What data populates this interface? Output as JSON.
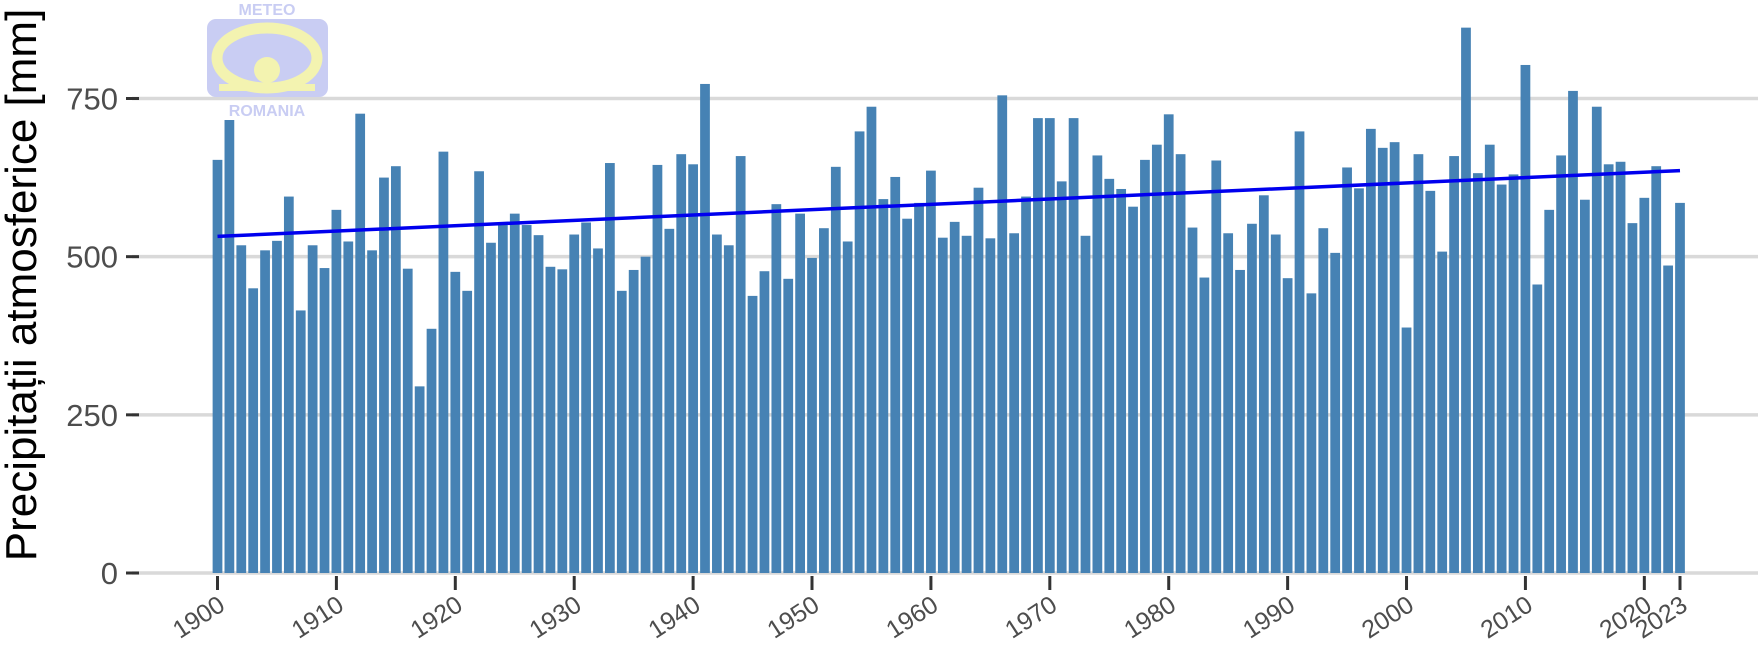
{
  "logo": {
    "top_text": "METEO",
    "bottom_text": "ROMANIA",
    "color": "#c9cdf3",
    "sun_color": "#f3f3b0"
  },
  "chart_data": {
    "type": "bar",
    "title": "",
    "xlabel": "",
    "ylabel": "Precipitații atmosferice [mm]",
    "ylim": [
      0,
      870
    ],
    "yticks": [
      0,
      250,
      500,
      750
    ],
    "xticks": [
      1900,
      1910,
      1920,
      1930,
      1940,
      1950,
      1960,
      1970,
      1980,
      1990,
      2000,
      2010,
      2020,
      2023
    ],
    "grid": "horizontal",
    "bar_color": "#4682b4",
    "trend_color": "#0000ee",
    "trend": {
      "x": [
        1900,
        2023
      ],
      "y": [
        532,
        636
      ]
    },
    "x": [
      1900,
      1901,
      1902,
      1903,
      1904,
      1905,
      1906,
      1907,
      1908,
      1909,
      1910,
      1911,
      1912,
      1913,
      1914,
      1915,
      1916,
      1917,
      1918,
      1919,
      1920,
      1921,
      1922,
      1923,
      1924,
      1925,
      1926,
      1927,
      1928,
      1929,
      1930,
      1931,
      1932,
      1933,
      1934,
      1935,
      1936,
      1937,
      1938,
      1939,
      1940,
      1941,
      1942,
      1943,
      1944,
      1945,
      1946,
      1947,
      1948,
      1949,
      1950,
      1951,
      1952,
      1953,
      1954,
      1955,
      1956,
      1957,
      1958,
      1959,
      1960,
      1961,
      1962,
      1963,
      1964,
      1965,
      1966,
      1967,
      1968,
      1969,
      1970,
      1971,
      1972,
      1973,
      1974,
      1975,
      1976,
      1977,
      1978,
      1979,
      1980,
      1981,
      1982,
      1983,
      1984,
      1985,
      1986,
      1987,
      1988,
      1989,
      1990,
      1991,
      1992,
      1993,
      1994,
      1995,
      1996,
      1997,
      1998,
      1999,
      2000,
      2001,
      2002,
      2003,
      2004,
      2005,
      2006,
      2007,
      2008,
      2009,
      2010,
      2011,
      2012,
      2013,
      2014,
      2015,
      2016,
      2017,
      2018,
      2019,
      2020,
      2021,
      2022,
      2023
    ],
    "values": [
      653,
      716,
      518,
      450,
      510,
      525,
      595,
      415,
      518,
      482,
      574,
      524,
      726,
      510,
      625,
      643,
      481,
      295,
      386,
      666,
      476,
      446,
      635,
      522,
      552,
      568,
      550,
      534,
      484,
      480,
      535,
      554,
      513,
      648,
      446,
      479,
      500,
      645,
      544,
      662,
      646,
      773,
      535,
      518,
      659,
      438,
      477,
      583,
      465,
      568,
      498,
      545,
      642,
      524,
      698,
      737,
      591,
      626,
      560,
      585,
      636,
      530,
      555,
      533,
      609,
      529,
      755,
      537,
      595,
      719,
      719,
      619,
      719,
      533,
      660,
      623,
      607,
      579,
      653,
      677,
      725,
      662,
      546,
      467,
      652,
      537,
      479,
      552,
      597,
      535,
      466,
      698,
      442,
      545,
      506,
      641,
      608,
      702,
      672,
      681,
      388,
      662,
      604,
      508,
      659,
      862,
      632,
      677,
      614,
      630,
      803,
      456,
      574,
      660,
      762,
      590,
      737,
      646,
      650,
      553,
      593,
      643,
      486,
      585
    ]
  }
}
